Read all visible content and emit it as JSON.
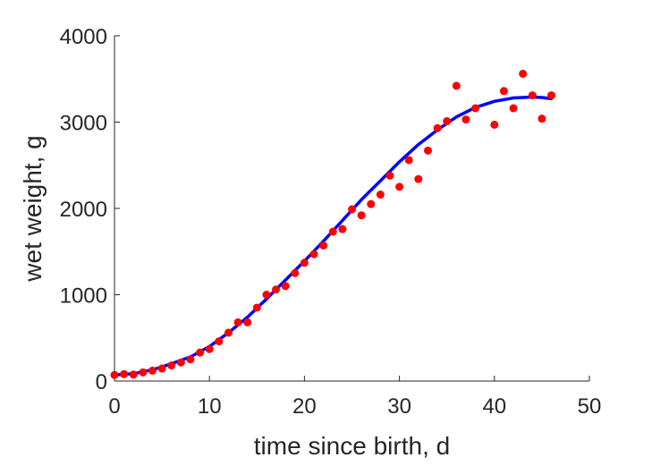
{
  "chart_data": {
    "type": "scatter",
    "xlabel": "time since birth, d",
    "ylabel": "wet weight, g",
    "xlim": [
      0,
      50
    ],
    "ylim": [
      0,
      4000
    ],
    "xticks": [
      0,
      10,
      20,
      30,
      40,
      50
    ],
    "yticks": [
      0,
      1000,
      2000,
      3000,
      4000
    ],
    "grid": false,
    "series": [
      {
        "type": "scatter",
        "color": "#ff0000",
        "points": [
          {
            "x": 0,
            "y": 70
          },
          {
            "x": 1,
            "y": 80
          },
          {
            "x": 2,
            "y": 75
          },
          {
            "x": 3,
            "y": 100
          },
          {
            "x": 4,
            "y": 120
          },
          {
            "x": 5,
            "y": 145
          },
          {
            "x": 6,
            "y": 180
          },
          {
            "x": 7,
            "y": 215
          },
          {
            "x": 8,
            "y": 250
          },
          {
            "x": 9,
            "y": 330
          },
          {
            "x": 10,
            "y": 370
          },
          {
            "x": 11,
            "y": 460
          },
          {
            "x": 12,
            "y": 560
          },
          {
            "x": 13,
            "y": 680
          },
          {
            "x": 14,
            "y": 680
          },
          {
            "x": 15,
            "y": 850
          },
          {
            "x": 16,
            "y": 1000
          },
          {
            "x": 17,
            "y": 1060
          },
          {
            "x": 18,
            "y": 1100
          },
          {
            "x": 19,
            "y": 1250
          },
          {
            "x": 20,
            "y": 1370
          },
          {
            "x": 21,
            "y": 1470
          },
          {
            "x": 22,
            "y": 1570
          },
          {
            "x": 23,
            "y": 1730
          },
          {
            "x": 24,
            "y": 1760
          },
          {
            "x": 25,
            "y": 1990
          },
          {
            "x": 26,
            "y": 1920
          },
          {
            "x": 27,
            "y": 2050
          },
          {
            "x": 28,
            "y": 2160
          },
          {
            "x": 29,
            "y": 2380
          },
          {
            "x": 30,
            "y": 2250
          },
          {
            "x": 31,
            "y": 2560
          },
          {
            "x": 32,
            "y": 2340
          },
          {
            "x": 33,
            "y": 2670
          },
          {
            "x": 34,
            "y": 2930
          },
          {
            "x": 35,
            "y": 3010
          },
          {
            "x": 36,
            "y": 3420
          },
          {
            "x": 37,
            "y": 3030
          },
          {
            "x": 38,
            "y": 3160
          },
          {
            "x": 40,
            "y": 2970
          },
          {
            "x": 41,
            "y": 3360
          },
          {
            "x": 42,
            "y": 3160
          },
          {
            "x": 43,
            "y": 3560
          },
          {
            "x": 44,
            "y": 3310
          },
          {
            "x": 45,
            "y": 3040
          },
          {
            "x": 46,
            "y": 3310
          }
        ]
      },
      {
        "type": "line",
        "color": "#0000ff",
        "points": [
          {
            "x": 0,
            "y": 70
          },
          {
            "x": 2,
            "y": 85
          },
          {
            "x": 4,
            "y": 130
          },
          {
            "x": 6,
            "y": 200
          },
          {
            "x": 8,
            "y": 280
          },
          {
            "x": 10,
            "y": 400
          },
          {
            "x": 12,
            "y": 560
          },
          {
            "x": 14,
            "y": 740
          },
          {
            "x": 16,
            "y": 950
          },
          {
            "x": 18,
            "y": 1170
          },
          {
            "x": 20,
            "y": 1390
          },
          {
            "x": 22,
            "y": 1620
          },
          {
            "x": 24,
            "y": 1860
          },
          {
            "x": 26,
            "y": 2100
          },
          {
            "x": 28,
            "y": 2320
          },
          {
            "x": 30,
            "y": 2540
          },
          {
            "x": 32,
            "y": 2740
          },
          {
            "x": 34,
            "y": 2910
          },
          {
            "x": 36,
            "y": 3060
          },
          {
            "x": 38,
            "y": 3170
          },
          {
            "x": 40,
            "y": 3240
          },
          {
            "x": 42,
            "y": 3280
          },
          {
            "x": 44,
            "y": 3290
          },
          {
            "x": 45,
            "y": 3285
          },
          {
            "x": 46,
            "y": 3270
          }
        ]
      }
    ]
  }
}
